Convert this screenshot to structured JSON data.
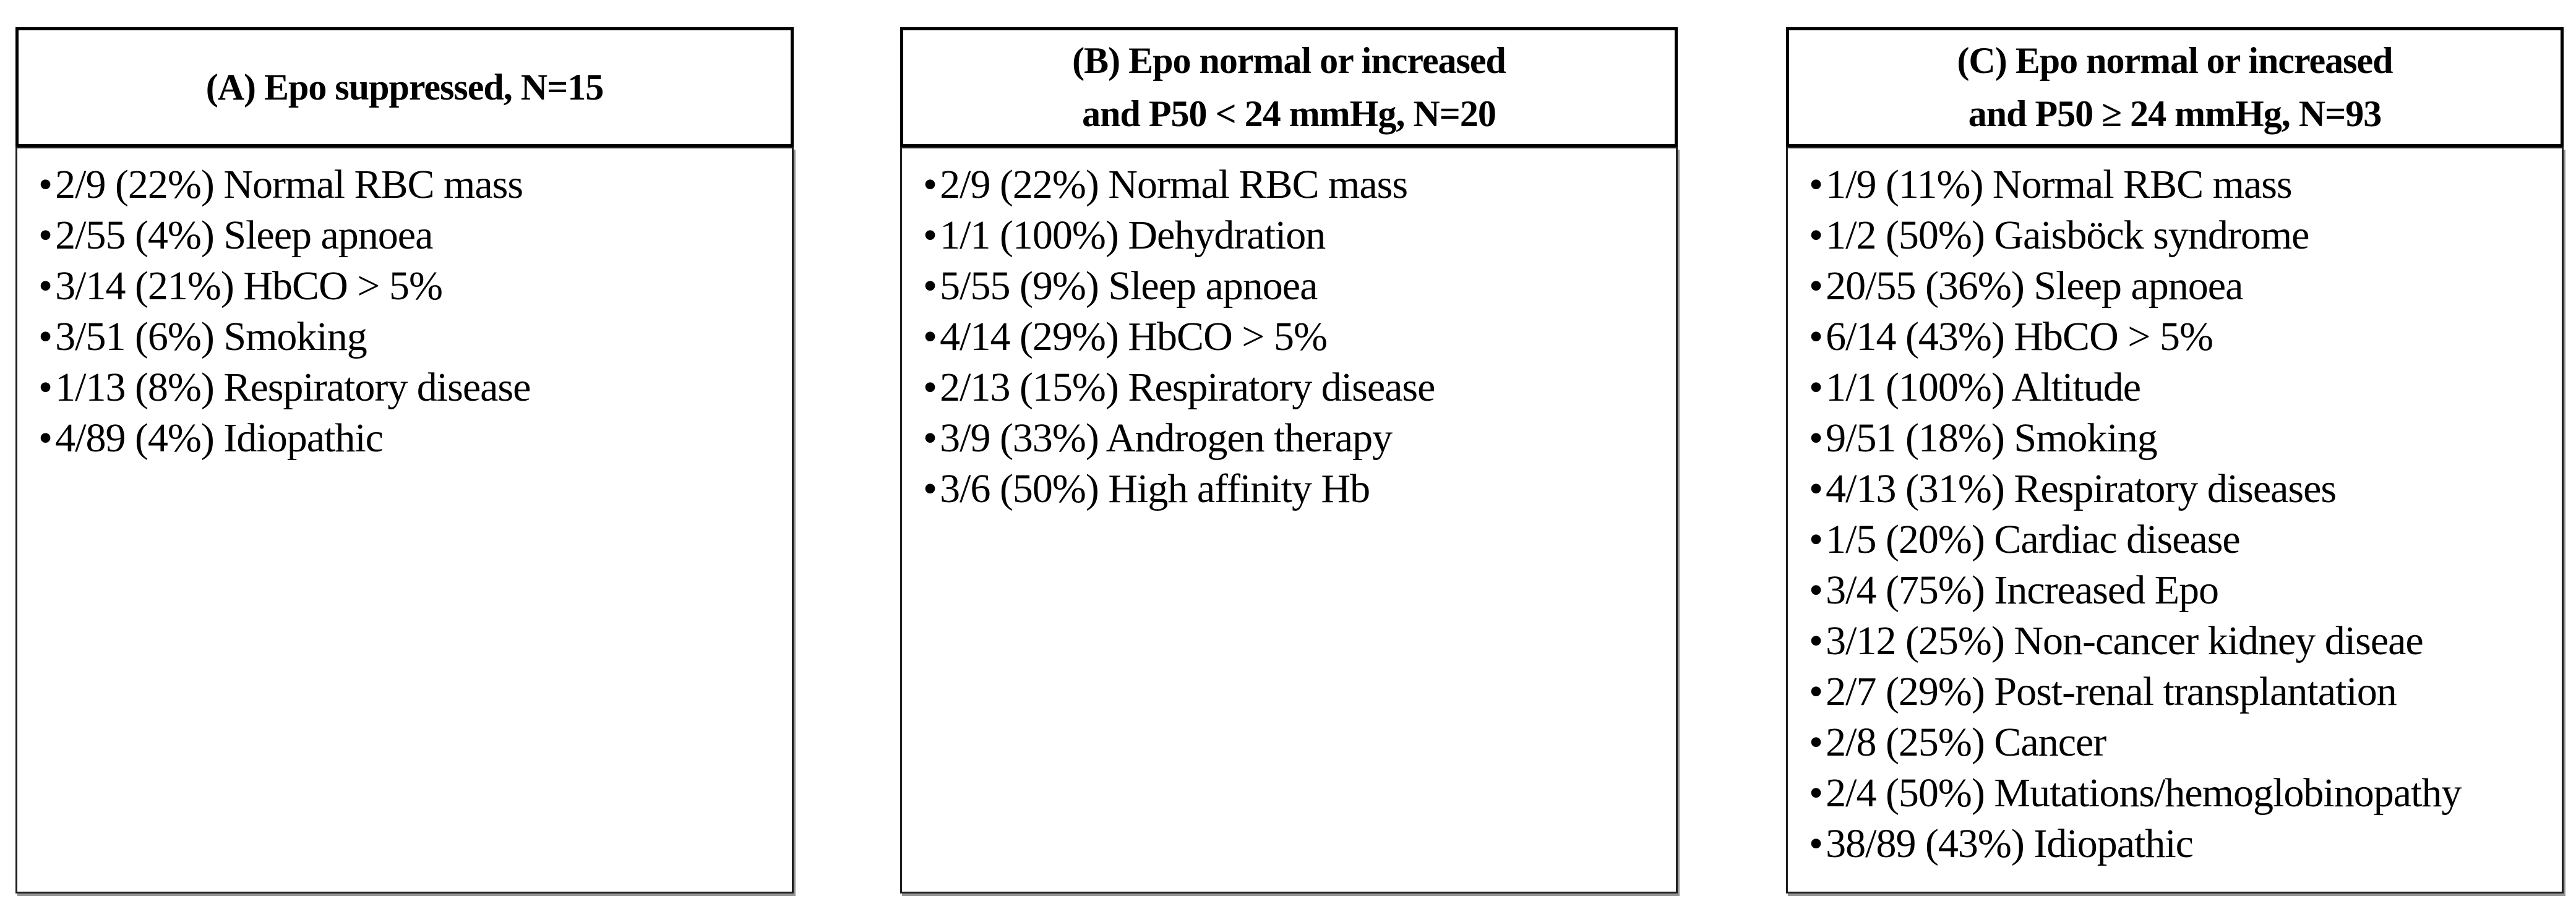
{
  "bullet_glyph": "•",
  "colors": {
    "background": "#ffffff",
    "text": "#000000",
    "header_border": "#000000",
    "body_border": "#1f1f1f",
    "shadow": "#979797"
  },
  "panels": [
    {
      "id": "A",
      "title_lines": [
        "(A) Epo suppressed, N=15"
      ],
      "items": [
        "2/9 (22%) Normal RBC mass",
        "2/55 (4%) Sleep apnoea",
        "3/14 (21%) HbCO > 5%",
        "3/51 (6%) Smoking",
        "1/13 (8%) Respiratory disease",
        "4/89 (4%) Idiopathic"
      ]
    },
    {
      "id": "B",
      "title_lines": [
        "(B) Epo normal or increased",
        "and P50 < 24 mmHg, N=20"
      ],
      "items": [
        "2/9 (22%) Normal RBC mass",
        "1/1 (100%) Dehydration",
        "5/55 (9%) Sleep apnoea",
        "4/14 (29%) HbCO > 5%",
        "2/13 (15%) Respiratory disease",
        "3/9 (33%) Androgen therapy",
        "3/6 (50%) High affinity Hb"
      ]
    },
    {
      "id": "C",
      "title_lines": [
        "(C) Epo normal or increased",
        "and P50 ≥ 24 mmHg, N=93"
      ],
      "items": [
        "1/9 (11%) Normal RBC mass",
        "1/2 (50%) Gaisböck syndrome",
        "20/55 (36%) Sleep apnoea",
        "6/14 (43%) HbCO > 5%",
        "1/1 (100%) Altitude",
        "9/51 (18%) Smoking",
        "4/13 (31%) Respiratory diseases",
        "1/5 (20%) Cardiac disease",
        "3/4 (75%) Increased Epo",
        "3/12 (25%) Non-cancer kidney diseae",
        "2/7 (29%) Post-renal transplantation",
        "2/8 (25%) Cancer",
        "2/4 (50%) Mutations/hemoglobinopathy",
        "38/89 (43%) Idiopathic"
      ]
    }
  ]
}
